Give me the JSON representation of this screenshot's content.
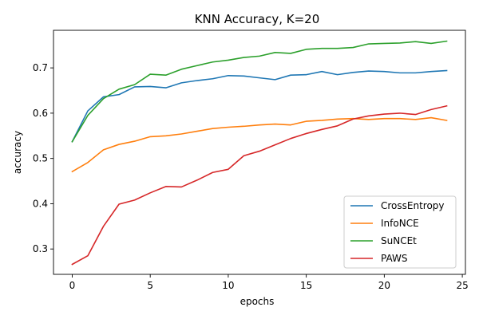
{
  "chart_data": {
    "type": "line",
    "title": "KNN Accuracy, K=20",
    "xlabel": "epochs",
    "ylabel": "accuracy",
    "xlim": [
      -1.2,
      25.2
    ],
    "ylim": [
      0.244,
      0.783
    ],
    "xticks": [
      0,
      5,
      10,
      15,
      20,
      25
    ],
    "yticks": [
      0.3,
      0.4,
      0.5,
      0.6,
      0.7
    ],
    "grid": false,
    "legend_position": "lower-right",
    "x": [
      0,
      1,
      2,
      3,
      4,
      5,
      6,
      7,
      8,
      9,
      10,
      11,
      12,
      13,
      14,
      15,
      16,
      17,
      18,
      19,
      20,
      21,
      22,
      23,
      24
    ],
    "series": [
      {
        "name": "CrossEntropy",
        "color": "#1f77b4",
        "values": [
          0.537,
          0.605,
          0.636,
          0.641,
          0.658,
          0.659,
          0.656,
          0.667,
          0.672,
          0.676,
          0.683,
          0.682,
          0.678,
          0.674,
          0.684,
          0.685,
          0.692,
          0.685,
          0.69,
          0.693,
          0.692,
          0.689,
          0.689,
          0.692,
          0.694
        ]
      },
      {
        "name": "InfoNCE",
        "color": "#ff7f0e",
        "values": [
          0.471,
          0.491,
          0.519,
          0.531,
          0.538,
          0.548,
          0.55,
          0.554,
          0.56,
          0.566,
          0.569,
          0.571,
          0.574,
          0.576,
          0.574,
          0.582,
          0.584,
          0.587,
          0.588,
          0.586,
          0.588,
          0.588,
          0.586,
          0.59,
          0.584
        ]
      },
      {
        "name": "SuNCEt",
        "color": "#2ca02c",
        "values": [
          0.537,
          0.595,
          0.632,
          0.653,
          0.663,
          0.686,
          0.684,
          0.697,
          0.705,
          0.713,
          0.717,
          0.723,
          0.726,
          0.734,
          0.732,
          0.741,
          0.743,
          0.743,
          0.745,
          0.753,
          0.754,
          0.755,
          0.758,
          0.754,
          0.759
        ]
      },
      {
        "name": "PAWS",
        "color": "#d62728",
        "values": [
          0.266,
          0.285,
          0.35,
          0.399,
          0.408,
          0.424,
          0.438,
          0.437,
          0.452,
          0.469,
          0.476,
          0.506,
          0.516,
          0.53,
          0.544,
          0.555,
          0.564,
          0.572,
          0.587,
          0.594,
          0.598,
          0.6,
          0.597,
          0.608,
          0.616
        ]
      }
    ]
  }
}
